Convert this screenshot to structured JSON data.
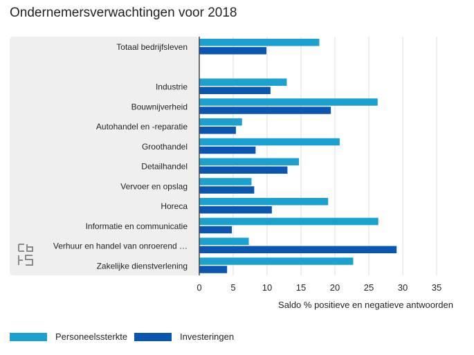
{
  "title": "Ondernemersverwachtingen voor 2018",
  "chart_data": {
    "type": "bar",
    "orientation": "horizontal",
    "categories": [
      "Totaal bedrijfsleven",
      "",
      "Industrie",
      "Bouwnijverheid",
      "Autohandel en -reparatie",
      "Groothandel",
      "Detailhandel",
      "Vervoer en opslag",
      "Horeca",
      "Informatie en communicatie",
      "Verhuur en handel van onroerend …",
      "Zakelijke dienstverlening"
    ],
    "series": [
      {
        "name": "Personeelssterkte",
        "color": "#1aa1cf",
        "values": [
          17.7,
          null,
          12.9,
          26.3,
          6.3,
          20.7,
          14.7,
          7.7,
          19.0,
          26.4,
          7.3,
          22.7
        ]
      },
      {
        "name": "Investeringen",
        "color": "#0a56b0",
        "values": [
          9.9,
          null,
          10.5,
          19.4,
          5.4,
          8.3,
          13.0,
          8.1,
          10.7,
          4.8,
          29.1,
          4.1
        ]
      }
    ],
    "xlabel": "Saldo % positieve en negatieve antwoorden",
    "ylabel": "",
    "xlim": [
      0,
      35
    ],
    "xticks": [
      0,
      5,
      10,
      15,
      20,
      25,
      30,
      35
    ],
    "grid": true,
    "legend_position": "bottom-left"
  },
  "logo_icon": "cbs-logo-icon"
}
